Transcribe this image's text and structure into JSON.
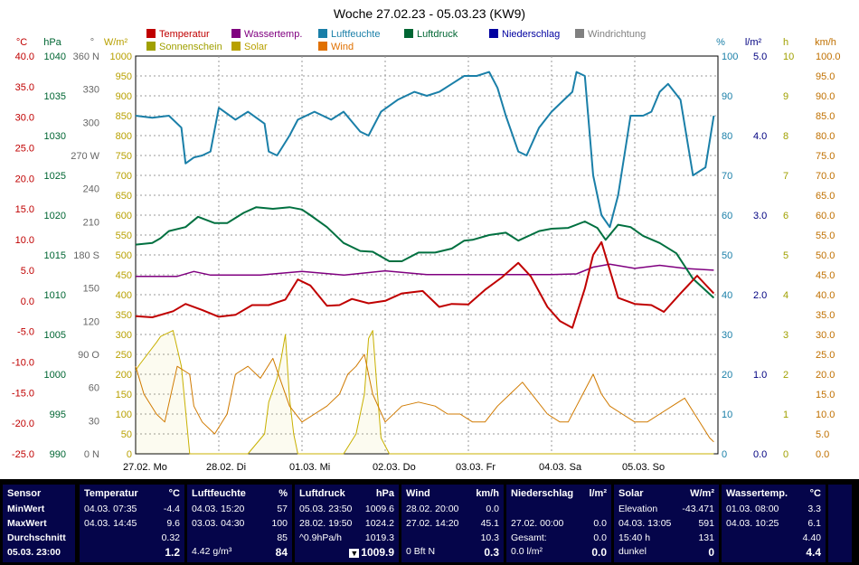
{
  "chart_data": {
    "type": "line",
    "title": "Woche 27.02.23 - 05.03.23 (KW9)",
    "x_labels": [
      "27.02.  Mo",
      "28.02.  Di",
      "01.03.  Mi",
      "02.03.  Do",
      "03.03.  Fr",
      "04.03.  Sa",
      "05.03.  So"
    ],
    "axes": {
      "temp": {
        "unit": "°C",
        "ticks": [
          "40.0",
          "35.0",
          "30.0",
          "25.0",
          "20.0",
          "15.0",
          "10.0",
          "5.0",
          "0.0",
          "-5.0",
          "-10.0",
          "-15.0",
          "-20.0",
          "-25.0"
        ],
        "ylim": [
          -25,
          40
        ],
        "color": "#c00000"
      },
      "pressure": {
        "unit": "hPa",
        "ticks": [
          "1040",
          "1035",
          "1030",
          "1025",
          "1020",
          "1015",
          "1010",
          "1005",
          "1000",
          "995",
          "990"
        ],
        "ylim": [
          990,
          1040
        ],
        "color": "#006633"
      },
      "wind_dir": {
        "unit": "°",
        "ticks": [
          "360 N",
          "330",
          "300",
          "270 W",
          "240",
          "210",
          "180 S",
          "150",
          "120",
          "90 O",
          "60",
          "30",
          "0 N"
        ],
        "ylim": [
          0,
          360
        ],
        "color": "#666666"
      },
      "solar": {
        "unit": "W/m²",
        "ticks": [
          "1000",
          "950",
          "900",
          "850",
          "800",
          "750",
          "700",
          "650",
          "600",
          "550",
          "500",
          "450",
          "400",
          "350",
          "300",
          "250",
          "200",
          "150",
          "100",
          "50",
          "0"
        ],
        "ylim": [
          0,
          1000
        ],
        "color": "#b8a000"
      },
      "humidity": {
        "unit": "%",
        "ticks": [
          "100",
          "90",
          "80",
          "70",
          "60",
          "50",
          "40",
          "30",
          "20",
          "10",
          "0"
        ],
        "ylim": [
          0,
          100
        ],
        "color": "#1a7fa8"
      },
      "rain": {
        "unit": "l/m²",
        "ticks": [
          "5.0",
          "4.0",
          "3.0",
          "2.0",
          "1.0",
          "0.0"
        ],
        "ylim": [
          0,
          5
        ],
        "color": "#000080"
      },
      "sunshine": {
        "unit": "h",
        "ticks": [
          "10",
          "9",
          "8",
          "7",
          "6",
          "5",
          "4",
          "3",
          "2",
          "1",
          "0"
        ],
        "ylim": [
          0,
          10
        ],
        "color": "#a0a000"
      },
      "wind": {
        "unit": "km/h",
        "ticks": [
          "100.0",
          "95.0",
          "90.0",
          "85.0",
          "80.0",
          "75.0",
          "70.0",
          "65.0",
          "60.0",
          "55.0",
          "50.0",
          "45.0",
          "40.0",
          "35.0",
          "30.0",
          "25.0",
          "20.0",
          "15.0",
          "10.0",
          "5.0",
          "0.0"
        ],
        "ylim": [
          0,
          100
        ],
        "color": "#c07000"
      }
    },
    "legend": [
      {
        "name": "Temperatur",
        "color": "#c00000"
      },
      {
        "name": "Wassertemp.",
        "color": "#800080"
      },
      {
        "name": "Luftfeuchte",
        "color": "#1a7fa8"
      },
      {
        "name": "Luftdruck",
        "color": "#006633"
      },
      {
        "name": "Niederschlag",
        "color": "#0000a0"
      },
      {
        "name": "Windrichtung",
        "color": "#808080"
      },
      {
        "name": "Sonnenschein",
        "color": "#a0a000"
      },
      {
        "name": "Solar",
        "color": "#b8a000"
      },
      {
        "name": "Wind",
        "color": "#e07000"
      }
    ],
    "series": {
      "temperatur": {
        "x": [
          0,
          0.2,
          0.45,
          0.6,
          0.8,
          1.0,
          1.2,
          1.4,
          1.6,
          1.8,
          1.95,
          2.1,
          2.3,
          2.45,
          2.6,
          2.8,
          3.0,
          3.2,
          3.45,
          3.65,
          3.8,
          4.0,
          4.2,
          4.4,
          4.6,
          4.75,
          4.95,
          5.1,
          5.25,
          5.4,
          5.5,
          5.6,
          5.8,
          6.0,
          6.2,
          6.35,
          6.55,
          6.75,
          6.95
        ],
        "y": [
          -2.5,
          -2.7,
          -1.7,
          -0.5,
          -1.5,
          -2.6,
          -2.3,
          -0.7,
          -0.7,
          0.2,
          3.5,
          2.5,
          -0.8,
          -0.7,
          0.3,
          -0.4,
          0.0,
          1.2,
          1.6,
          -1.0,
          -0.5,
          -0.6,
          1.8,
          3.8,
          6.2,
          4.0,
          -1.0,
          -3.3,
          -4.4,
          2.0,
          7.5,
          9.6,
          0.5,
          -0.5,
          -0.7,
          -1.8,
          1.2,
          4.1,
          1.2
        ]
      },
      "wassertemp": {
        "x": [
          0,
          0.5,
          0.7,
          0.9,
          1.5,
          2.0,
          2.5,
          3.0,
          3.5,
          4.0,
          4.5,
          5.0,
          5.3,
          5.5,
          5.7,
          6.0,
          6.3,
          6.6,
          6.95
        ],
        "y": [
          4.0,
          4.0,
          4.8,
          4.2,
          4.2,
          4.8,
          4.2,
          4.9,
          4.3,
          4.3,
          4.3,
          4.3,
          4.4,
          5.5,
          6.0,
          5.3,
          5.8,
          5.3,
          5.0
        ]
      },
      "luftfeuchte": {
        "x": [
          0,
          0.2,
          0.4,
          0.55,
          0.6,
          0.7,
          0.8,
          0.9,
          1.0,
          1.2,
          1.35,
          1.55,
          1.6,
          1.7,
          1.85,
          1.95,
          2.15,
          2.35,
          2.5,
          2.7,
          2.8,
          2.95,
          3.15,
          3.35,
          3.5,
          3.65,
          3.8,
          3.95,
          4.1,
          4.25,
          4.35,
          4.45,
          4.6,
          4.7,
          4.85,
          5.0,
          5.15,
          5.25,
          5.3,
          5.4,
          5.5,
          5.6,
          5.7,
          5.8,
          5.95,
          6.1,
          6.2,
          6.3,
          6.4,
          6.55,
          6.7,
          6.85,
          6.95
        ],
        "y": [
          85,
          84.5,
          85,
          82,
          73,
          74.5,
          75,
          76,
          87,
          84,
          86,
          83,
          76,
          75,
          80,
          84,
          86,
          84,
          86,
          81,
          80,
          86,
          89,
          91,
          90,
          91,
          93,
          95,
          95,
          96,
          92,
          85,
          76,
          75,
          82,
          86,
          89,
          91,
          96,
          95,
          70,
          60,
          57,
          65,
          85,
          85,
          86,
          91,
          93,
          89,
          70,
          72,
          85
        ]
      },
      "luftdruck": {
        "x": [
          0,
          0.2,
          0.3,
          0.4,
          0.6,
          0.75,
          0.95,
          1.1,
          1.3,
          1.45,
          1.65,
          1.85,
          2.0,
          2.1,
          2.3,
          2.5,
          2.7,
          2.85,
          3.05,
          3.2,
          3.4,
          3.6,
          3.8,
          3.95,
          4.05,
          4.25,
          4.45,
          4.6,
          4.85,
          5.0,
          5.2,
          5.4,
          5.55,
          5.65,
          5.8,
          5.95,
          6.1,
          6.3,
          6.5,
          6.7,
          6.95
        ],
        "y": [
          1016.3,
          1016.5,
          1017.1,
          1018.0,
          1018.5,
          1019.8,
          1019.0,
          1019.0,
          1020.3,
          1021.0,
          1020.8,
          1021.0,
          1020.7,
          1020.0,
          1018.5,
          1016.5,
          1015.5,
          1015.4,
          1014.2,
          1014.2,
          1015.3,
          1015.3,
          1015.8,
          1016.8,
          1016.9,
          1017.5,
          1017.8,
          1016.8,
          1018.0,
          1018.3,
          1018.4,
          1019.2,
          1018.4,
          1016.9,
          1018.8,
          1018.5,
          1017.4,
          1016.5,
          1015.2,
          1012.0,
          1009.6
        ]
      },
      "solar": {
        "x": [
          0,
          0.05,
          0.25,
          0.3,
          0.45,
          0.55,
          0.65,
          0.8,
          0.9,
          1.05,
          1.2,
          1.35,
          1.55,
          1.6,
          1.7,
          1.75,
          1.8,
          1.85,
          1.9,
          1.95,
          2.05,
          2.15,
          2.3,
          2.5,
          2.65,
          2.75,
          2.8,
          2.85,
          2.9,
          2.95,
          3.05,
          3.1,
          3.25,
          3.45,
          3.6,
          3.75,
          4.0,
          4.15,
          4.3,
          4.35,
          4.4,
          4.5,
          4.65,
          4.85,
          5.0,
          5.15,
          5.25,
          5.32,
          5.4,
          5.45,
          5.55,
          5.6,
          5.65,
          5.72,
          5.8,
          5.9,
          6.0,
          6.2,
          6.35,
          6.45,
          6.55,
          6.62,
          6.68,
          6.75,
          6.85,
          6.95
        ],
        "y": [
          210,
          225,
          280,
          295,
          310,
          220,
          0,
          0,
          0,
          0,
          0,
          0,
          50,
          130,
          190,
          240,
          300,
          140,
          50,
          0,
          0,
          0,
          0,
          0,
          50,
          150,
          290,
          310,
          170,
          40,
          0,
          0,
          0,
          0,
          0,
          0,
          0,
          0,
          0,
          0,
          0,
          0,
          0,
          0,
          0,
          0,
          0,
          0,
          0,
          0,
          0,
          0,
          0,
          0,
          0,
          0,
          0,
          0,
          0,
          0,
          0,
          0,
          0,
          0,
          0,
          0
        ]
      },
      "wind": {
        "x": [
          0,
          0.1,
          0.25,
          0.35,
          0.5,
          0.65,
          0.7,
          0.8,
          0.95,
          1.1,
          1.2,
          1.35,
          1.5,
          1.65,
          1.75,
          1.85,
          2.0,
          2.15,
          2.3,
          2.45,
          2.55,
          2.65,
          2.75,
          2.85,
          3.0,
          3.2,
          3.4,
          3.6,
          3.75,
          3.9,
          4.05,
          4.2,
          4.35,
          4.5,
          4.65,
          4.8,
          4.95,
          5.1,
          5.2,
          5.3,
          5.4,
          5.5,
          5.6,
          5.7,
          5.85,
          6.0,
          6.15,
          6.3,
          6.45,
          6.6,
          6.75,
          6.9,
          6.95
        ],
        "y": [
          22,
          15,
          10,
          8,
          22,
          20,
          12,
          8,
          5,
          10,
          20,
          22,
          19,
          24,
          18,
          12,
          8,
          10,
          12,
          15,
          20,
          22,
          25,
          15,
          8,
          12,
          13,
          12,
          10,
          10,
          8,
          8,
          12,
          15,
          18,
          14,
          10,
          8,
          8,
          12,
          16,
          20,
          15,
          12,
          10,
          8,
          8,
          10,
          12,
          14,
          9,
          4,
          3
        ]
      }
    }
  },
  "footer": {
    "sensor": {
      "title": "Sensor",
      "min": "MinWert",
      "max": "MaxWert",
      "avg": "Durchschnitt",
      "now": "05.03.  23:00"
    },
    "temperatur": {
      "title": "Temperatur",
      "unit": "°C",
      "min_date": "04.03.  07:35",
      "min_val": "-4.4",
      "max_date": "04.03.  14:45",
      "max_val": "9.6",
      "avg": "0.32",
      "now": "1.2"
    },
    "luftfeuchte": {
      "title": "Luftfeuchte",
      "unit": "%",
      "min_date": "04.03.  15:20",
      "min_val": "57",
      "max_date": "03.03.  04:30",
      "max_val": "100",
      "avg": "85",
      "abs": "4.42 g/m³",
      "now": "84"
    },
    "luftdruck": {
      "title": "Luftdruck",
      "unit": "hPa",
      "min_date": "05.03.  23:50",
      "min_val": "1009.6",
      "max_date": "28.02.  19:50",
      "max_val": "1024.2",
      "trend": "^0.9hPa/h",
      "avg": "1019.3",
      "now": "1009.9"
    },
    "wind": {
      "title": "Wind",
      "unit": "km/h",
      "min_date": "28.02.  20:00",
      "min_val": "0.0",
      "max_date": "27.02.  14:20",
      "max_val": "45.1",
      "avg": "10.3",
      "bft": "0 Bft N",
      "now": "0.3"
    },
    "niederschlag": {
      "title": "Niederschlag",
      "unit": "l/m²",
      "max_date": "27.02.  00:00",
      "max_val": "0.0",
      "gesamt_label": "Gesamt:",
      "gesamt": "0.0",
      "rate": "0.0 l/m²",
      "now": "0.0"
    },
    "solar": {
      "title": "Solar",
      "unit": "W/m²",
      "elev_label": "Elevation",
      "elev": "-43.471",
      "max_date": "04.03.  13:05",
      "max_val": "591",
      "time": "15:40 h",
      "avg": "131",
      "state": "dunkel",
      "now": "0"
    },
    "wassertemp": {
      "title": "Wassertemp.",
      "unit": "°C",
      "min_date": "01.03.  08:00",
      "min_val": "3.3",
      "max_date": "04.03.  10:25",
      "max_val": "6.1",
      "avg": "4.40",
      "now": "4.4"
    }
  }
}
